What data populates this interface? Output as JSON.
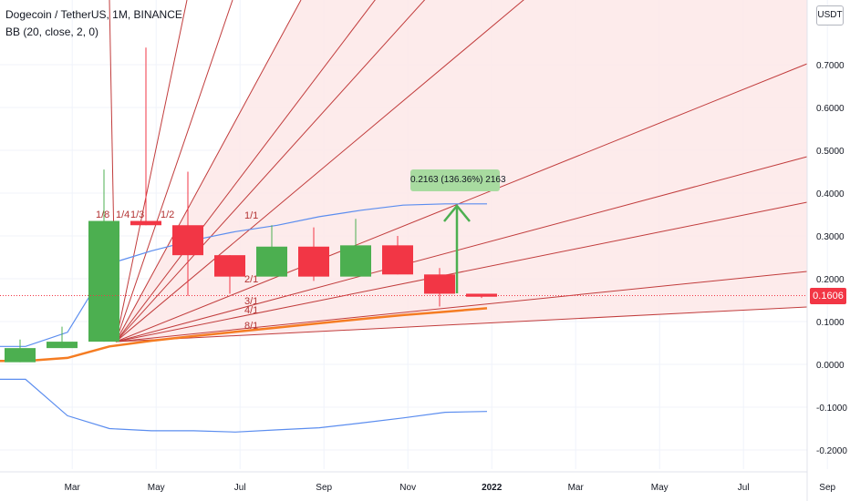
{
  "legend": {
    "symbol": "Dogecoin / TetherUS, 1M, BINANCE",
    "indicator": "BB (20, close, 2, 0)"
  },
  "price_axis": {
    "unit": "USDT",
    "current_price": "0.1606"
  },
  "ruler": {
    "label": "0.2163 (136.36%) 2163"
  },
  "colors": {
    "up": "#4caf50",
    "down": "#f23645",
    "fan_line": "#c13c3c",
    "fan_fill": "#fde8e8",
    "bb_upper_lower": "#5b8def",
    "bb_basis": "#f57c22",
    "ruler_arrow": "#4caf50",
    "price_line": "#f23645"
  },
  "gann_fan": {
    "labels": [
      "1/8",
      "1/4",
      "1/3",
      "1/2",
      "1/1",
      "2/1",
      "3/1",
      "4/1",
      "8/1"
    ]
  },
  "chart_data": {
    "type": "candlestick",
    "title": "Dogecoin / TetherUS, 1M, BINANCE",
    "ylim": [
      -0.23,
      0.87
    ],
    "y_ticks": [
      "0.7000",
      "0.6000",
      "0.5000",
      "0.4000",
      "0.3000",
      "0.2000",
      "0.1000",
      "0.0000",
      "-0.1000",
      "-0.2000"
    ],
    "x_ticks": [
      "Mar",
      "May",
      "Jul",
      "Sep",
      "Nov",
      "2022",
      "Mar",
      "May",
      "Jul",
      "Sep"
    ],
    "candles": [
      {
        "date": "2021-01",
        "open": 0.005,
        "high": 0.058,
        "low": 0.005,
        "close": 0.038
      },
      {
        "date": "2021-02",
        "open": 0.038,
        "high": 0.088,
        "low": 0.038,
        "close": 0.053
      },
      {
        "date": "2021-03",
        "open": 0.053,
        "high": 0.455,
        "low": 0.053,
        "close": 0.335
      },
      {
        "date": "2021-04",
        "open": 0.335,
        "high": 0.74,
        "low": 0.325,
        "close": 0.325
      },
      {
        "date": "2021-05",
        "open": 0.325,
        "high": 0.45,
        "low": 0.16,
        "close": 0.255
      },
      {
        "date": "2021-06",
        "open": 0.255,
        "high": 0.255,
        "low": 0.165,
        "close": 0.205
      },
      {
        "date": "2021-07",
        "open": 0.205,
        "high": 0.325,
        "low": 0.205,
        "close": 0.275
      },
      {
        "date": "2021-08",
        "open": 0.275,
        "high": 0.32,
        "low": 0.195,
        "close": 0.205
      },
      {
        "date": "2021-09",
        "open": 0.205,
        "high": 0.34,
        "low": 0.205,
        "close": 0.278
      },
      {
        "date": "2021-10",
        "open": 0.278,
        "high": 0.3,
        "low": 0.21,
        "close": 0.21
      },
      {
        "date": "2021-11",
        "open": 0.21,
        "high": 0.225,
        "low": 0.135,
        "close": 0.165
      },
      {
        "date": "2021-12",
        "open": 0.165,
        "high": 0.165,
        "low": 0.155,
        "close": 0.158
      }
    ],
    "bollinger": {
      "upper": [
        0.042,
        0.075,
        0.235,
        0.265,
        0.29,
        0.31,
        0.325,
        0.345,
        0.36,
        0.372,
        0.375,
        0.375
      ],
      "basis": [
        0.008,
        0.015,
        0.042,
        0.055,
        0.066,
        0.076,
        0.086,
        0.096,
        0.106,
        0.115,
        0.123,
        0.131
      ],
      "lower": [
        -0.035,
        -0.12,
        -0.15,
        -0.155,
        -0.155,
        -0.158,
        -0.153,
        -0.148,
        -0.137,
        -0.125,
        -0.112,
        -0.11
      ]
    }
  }
}
